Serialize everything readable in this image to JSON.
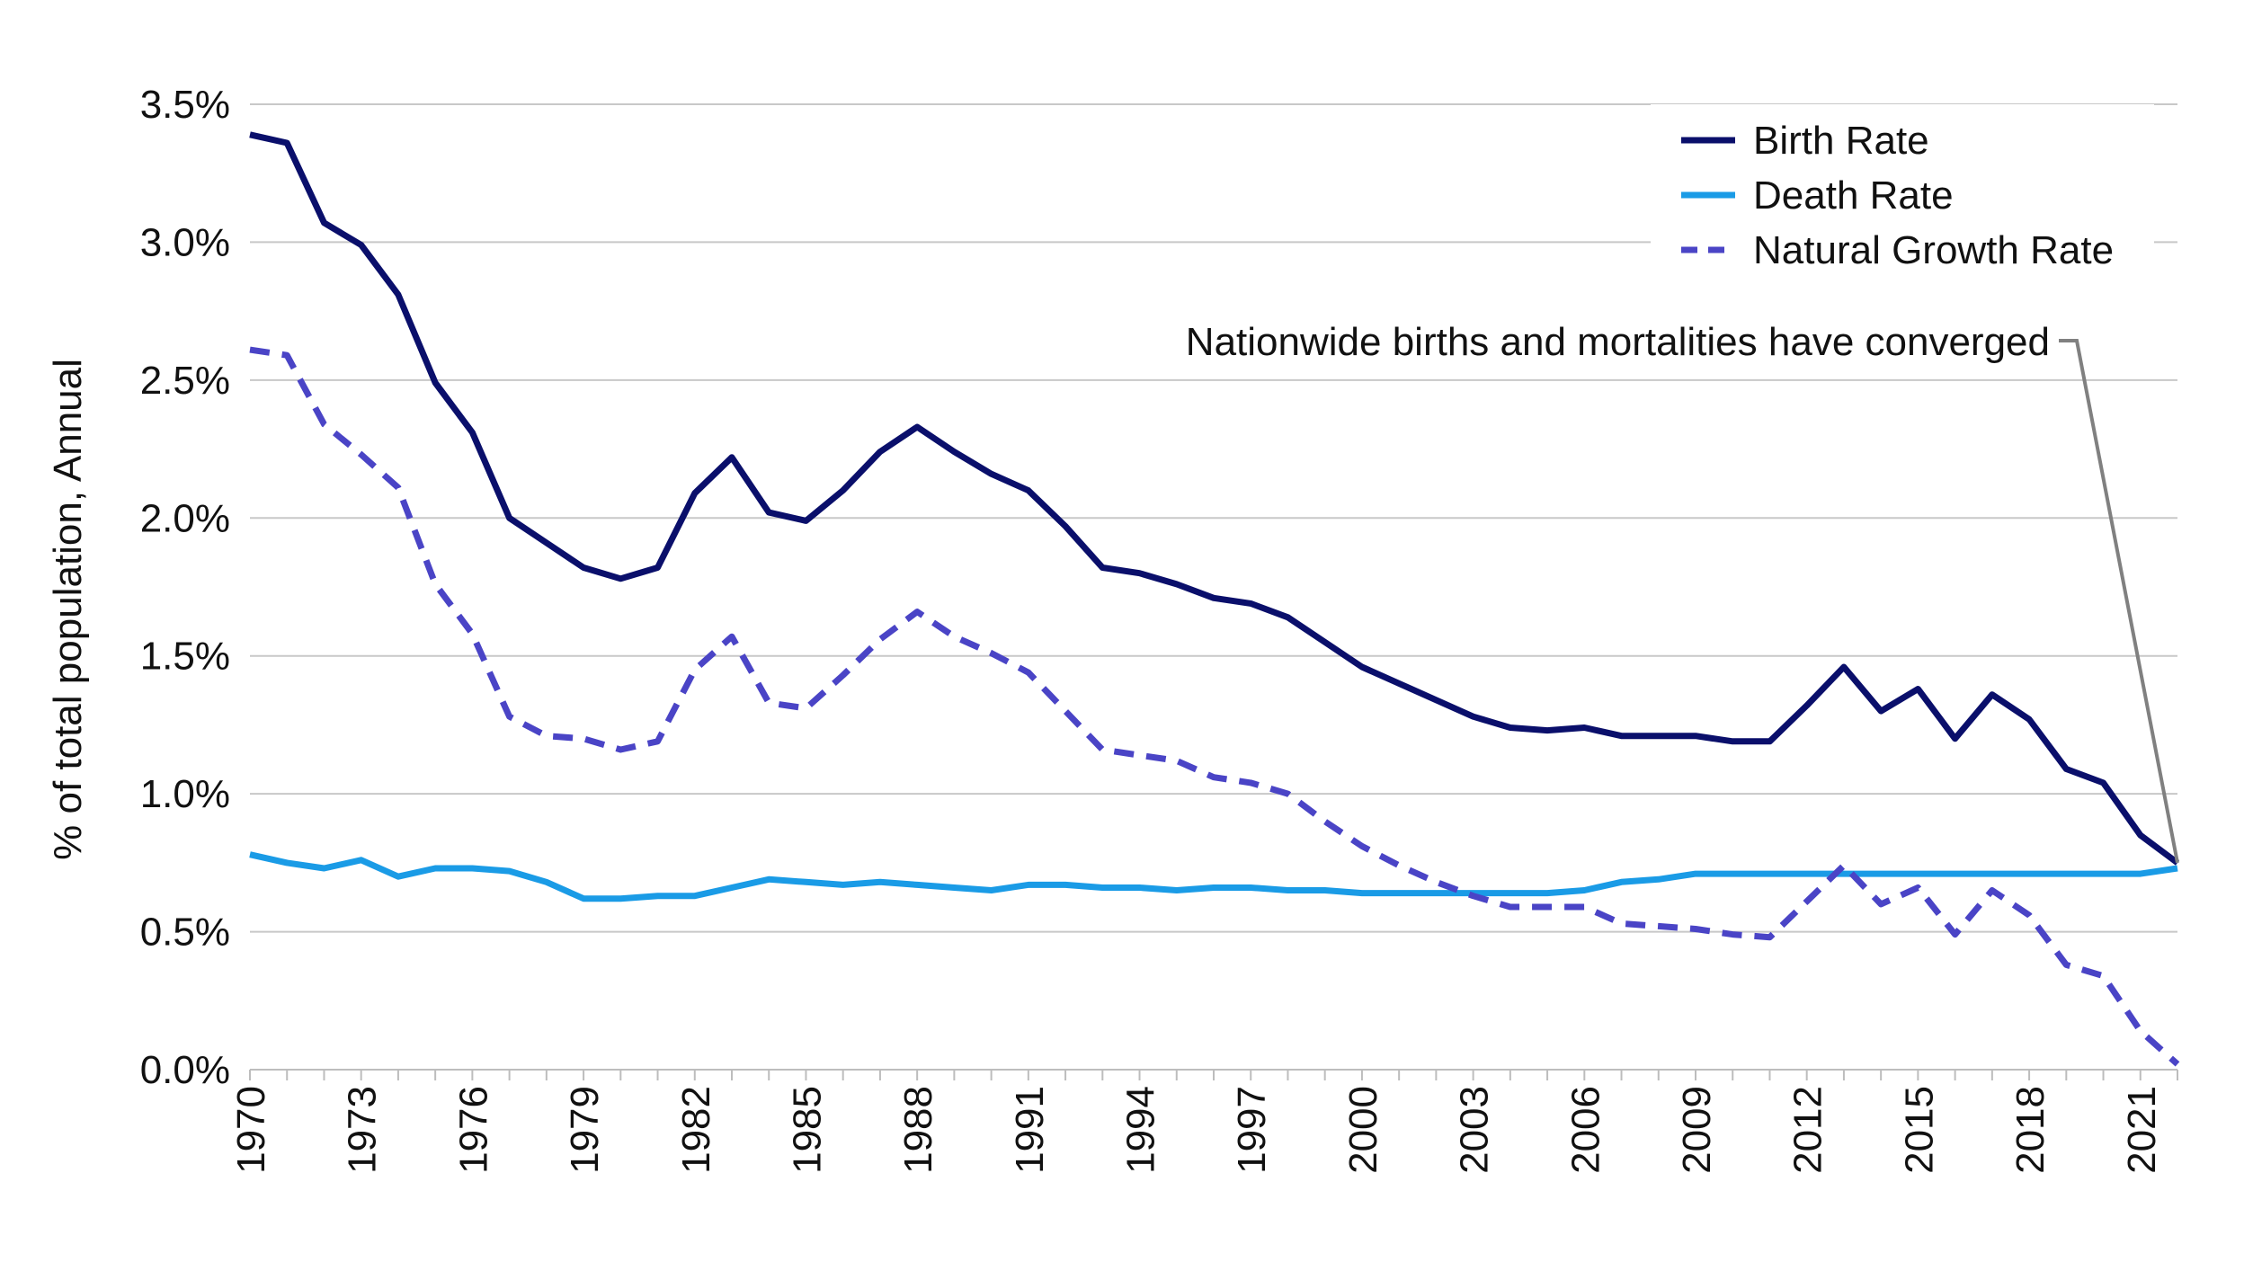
{
  "chart_data": {
    "type": "line",
    "title": "",
    "xlabel": "",
    "ylabel": "% of total population, Annual",
    "ylim": [
      0,
      3.5
    ],
    "y_ticks": [
      "0.0%",
      "0.5%",
      "1.0%",
      "1.5%",
      "2.0%",
      "2.5%",
      "3.0%",
      "3.5%"
    ],
    "y_tick_values": [
      0,
      0.5,
      1.0,
      1.5,
      2.0,
      2.5,
      3.0,
      3.5
    ],
    "x_ticks": [
      "1970",
      "1973",
      "1976",
      "1979",
      "1982",
      "1985",
      "1988",
      "1991",
      "1994",
      "1997",
      "2000",
      "2003",
      "2006",
      "2009",
      "2012",
      "2015",
      "2018",
      "2021"
    ],
    "x_tick_values": [
      1970,
      1973,
      1976,
      1979,
      1982,
      1985,
      1988,
      1991,
      1994,
      1997,
      2000,
      2003,
      2006,
      2009,
      2012,
      2015,
      2018,
      2021
    ],
    "xlim": [
      1970,
      2022
    ],
    "grid": "horizontal",
    "legend_position": "top-right",
    "x": [
      1970,
      1971,
      1972,
      1973,
      1974,
      1975,
      1976,
      1977,
      1978,
      1979,
      1980,
      1981,
      1982,
      1983,
      1984,
      1985,
      1986,
      1987,
      1988,
      1989,
      1990,
      1991,
      1992,
      1993,
      1994,
      1995,
      1996,
      1997,
      1998,
      1999,
      2000,
      2001,
      2002,
      2003,
      2004,
      2005,
      2006,
      2007,
      2008,
      2009,
      2010,
      2011,
      2012,
      2013,
      2014,
      2015,
      2016,
      2017,
      2018,
      2019,
      2020,
      2021,
      2022
    ],
    "series": [
      {
        "name": "Birth Rate",
        "color": "#0a0f6b",
        "dash": "solid",
        "values": [
          3.39,
          3.36,
          3.07,
          2.99,
          2.81,
          2.49,
          2.31,
          2.0,
          1.91,
          1.82,
          1.78,
          1.82,
          2.09,
          2.22,
          2.02,
          1.99,
          2.1,
          2.24,
          2.33,
          2.24,
          2.16,
          2.1,
          1.97,
          1.82,
          1.8,
          1.76,
          1.71,
          1.69,
          1.64,
          1.55,
          1.46,
          1.4,
          1.34,
          1.28,
          1.24,
          1.23,
          1.24,
          1.21,
          1.21,
          1.21,
          1.19,
          1.19,
          1.32,
          1.46,
          1.3,
          1.38,
          1.2,
          1.36,
          1.27,
          1.09,
          1.04,
          0.85,
          0.75
        ]
      },
      {
        "name": "Death Rate",
        "color": "#1a9be6",
        "dash": "solid",
        "values": [
          0.78,
          0.75,
          0.73,
          0.76,
          0.7,
          0.73,
          0.73,
          0.72,
          0.68,
          0.62,
          0.62,
          0.63,
          0.63,
          0.66,
          0.69,
          0.68,
          0.67,
          0.68,
          0.67,
          0.66,
          0.65,
          0.67,
          0.67,
          0.66,
          0.66,
          0.65,
          0.66,
          0.66,
          0.65,
          0.65,
          0.64,
          0.64,
          0.64,
          0.64,
          0.64,
          0.64,
          0.65,
          0.68,
          0.69,
          0.71,
          0.71,
          0.71,
          0.71,
          0.71,
          0.71,
          0.71,
          0.71,
          0.71,
          0.71,
          0.71,
          0.71,
          0.71,
          0.73
        ]
      },
      {
        "name": "Natural Growth Rate",
        "color": "#4a44c6",
        "dash": "dashed",
        "values": [
          2.61,
          2.59,
          2.34,
          2.23,
          2.11,
          1.76,
          1.58,
          1.28,
          1.21,
          1.2,
          1.16,
          1.19,
          1.45,
          1.57,
          1.33,
          1.31,
          1.43,
          1.56,
          1.66,
          1.57,
          1.51,
          1.44,
          1.3,
          1.16,
          1.14,
          1.12,
          1.06,
          1.04,
          1.0,
          0.9,
          0.81,
          0.74,
          0.68,
          0.63,
          0.59,
          0.59,
          0.59,
          0.53,
          0.52,
          0.51,
          0.49,
          0.48,
          0.61,
          0.74,
          0.6,
          0.66,
          0.49,
          0.65,
          0.56,
          0.38,
          0.34,
          0.14,
          0.02
        ]
      }
    ],
    "annotations": [
      {
        "text": "Nationwide births and mortalities have converged",
        "target_x": 2022,
        "target_y": 0.75
      }
    ]
  }
}
